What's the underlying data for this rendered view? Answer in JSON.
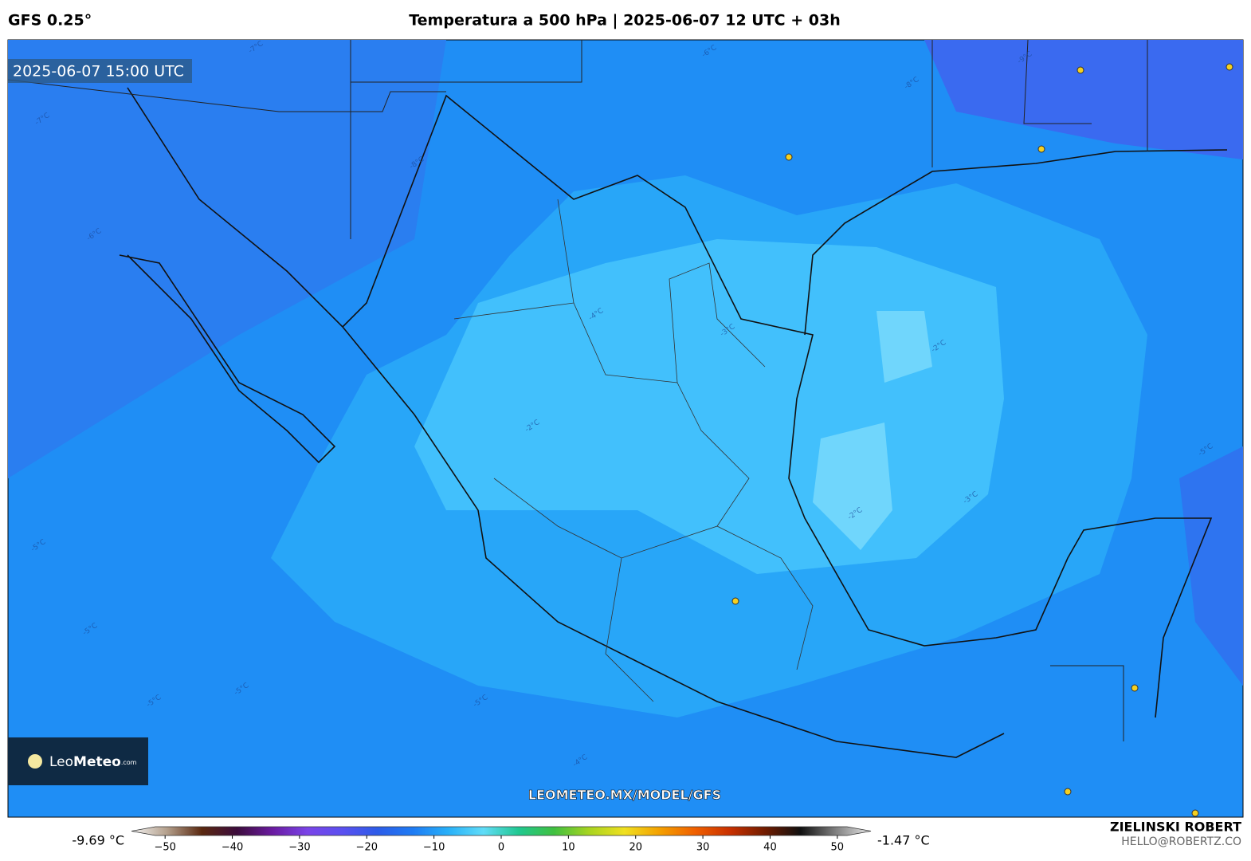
{
  "header": {
    "model": "GFS 0.25°",
    "title": "Temperatura a 500 hPa | 2025-06-07 12 UTC + 03h"
  },
  "map": {
    "valid_time": "2025-06-07 15:00 UTC",
    "watermark": "LEOMETEO.MX/MODEL/GFS",
    "logo": {
      "light": "Leo",
      "bold": "Meteo",
      "suffix": ".com"
    },
    "contour_labels": [
      "-7°C",
      "-8°C",
      "-6°C",
      "-6°C",
      "-9°C",
      "-7°C",
      "-8°C",
      "-5°C",
      "-4°C",
      "-3°C",
      "-2°C",
      "-2°C",
      "-3°C",
      "-2°C",
      "-5°C",
      "-5°C",
      "-5°C",
      "-4°C",
      "-5°C",
      "-5°C"
    ]
  },
  "colorbar": {
    "min_label": "-9.69 °C",
    "max_label": "-1.47 °C",
    "lim": [
      -55,
      55
    ],
    "ticks": [
      {
        "value": -50,
        "label": "−50"
      },
      {
        "value": -40,
        "label": "−40"
      },
      {
        "value": -30,
        "label": "−30"
      },
      {
        "value": -20,
        "label": "−20"
      },
      {
        "value": -10,
        "label": "−10"
      },
      0,
      10,
      20,
      30,
      40,
      50
    ],
    "colors": [
      "#f4f4f4",
      "#b4a08c",
      "#5a2810",
      "#3c0c3c",
      "#6a1aa0",
      "#7a44e8",
      "#5a50f0",
      "#2c5ce8",
      "#1e7cf4",
      "#28b0f8",
      "#60dcf8",
      "#20c890",
      "#40c040",
      "#a8d420",
      "#f0e020",
      "#f4a000",
      "#f06000",
      "#c83000",
      "#701c00",
      "#101010",
      "#808080",
      "#e8e8e8"
    ]
  },
  "credits": {
    "author": "ZIELINSKI ROBERT",
    "email": "HELLO@ROBERTZ.CO"
  }
}
